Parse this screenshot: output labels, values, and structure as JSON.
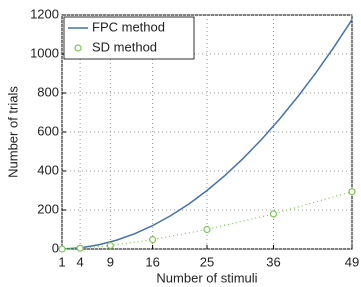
{
  "chart_data": {
    "type": "line",
    "x_label": "Number of stimuli",
    "y_label": "Number of trials",
    "xlim": [
      1,
      49
    ],
    "xticks": [
      1,
      4,
      9,
      16,
      25,
      36,
      49
    ],
    "ylim": [
      0,
      1200
    ],
    "yticks": [
      0,
      200,
      400,
      600,
      800,
      1000,
      1200
    ],
    "grid": true,
    "legend": "upper-left",
    "series": [
      {
        "name": "FPC method",
        "color": "#4472b0",
        "linestyle": "solid",
        "marker": "none",
        "x": [
          1,
          4,
          7,
          10,
          13,
          16,
          19,
          22,
          25,
          28,
          31,
          34,
          37,
          40,
          43,
          46,
          49
        ],
        "values": [
          0,
          6,
          21,
          45,
          78,
          120,
          171,
          231,
          300,
          378,
          465,
          561,
          666,
          780,
          903,
          1035,
          1176
        ]
      },
      {
        "name": "SD method",
        "color": "#7cc653",
        "linestyle": "dotted",
        "marker": "circle",
        "x": [
          1,
          4,
          9,
          16,
          25,
          36,
          49
        ],
        "values": [
          0,
          4,
          18,
          48,
          100,
          180,
          294
        ]
      }
    ]
  }
}
